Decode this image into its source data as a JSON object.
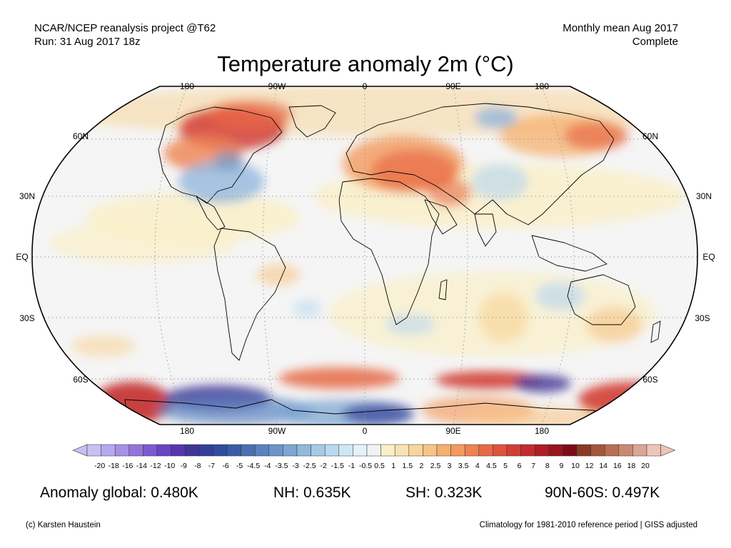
{
  "header": {
    "project": "NCAR/NCEP reanalysis project @T62",
    "run": "Run: 31 Aug 2017 18z",
    "period": "Monthly mean Aug 2017",
    "status": "Complete"
  },
  "title": "Temperature anomaly 2m (°C)",
  "map": {
    "longitude_labels": [
      "180",
      "90W",
      "0",
      "90E",
      "180"
    ],
    "latitude_labels_left": [
      "60N",
      "30N",
      "EQ",
      "30S",
      "60S"
    ],
    "latitude_labels_right": [
      "60N",
      "30N",
      "EQ",
      "30S",
      "60S"
    ]
  },
  "colorbar": {
    "labels": [
      "-20",
      "-18",
      "-16",
      "-14",
      "-12",
      "-10",
      "-9",
      "-8",
      "-7",
      "-6",
      "-5",
      "-4.5",
      "-4",
      "-3.5",
      "-3",
      "-2.5",
      "-2",
      "-1.5",
      "-1",
      "-0.5",
      "0.5",
      "1",
      "1.5",
      "2",
      "2.5",
      "3",
      "3.5",
      "4",
      "4.5",
      "5",
      "6",
      "7",
      "8",
      "9",
      "10",
      "12",
      "14",
      "16",
      "18",
      "20"
    ],
    "colors": [
      "#c9bff2",
      "#b7a8ee",
      "#a690e8",
      "#9274de",
      "#7d5ad2",
      "#6a44c4",
      "#5636b0",
      "#3f3596",
      "#333f99",
      "#2f4c9e",
      "#3a5ca8",
      "#4a6fb3",
      "#5a82bf",
      "#6d94c9",
      "#7ea6d3",
      "#92b8dc",
      "#a6c9e5",
      "#bad9ee",
      "#cfe7f5",
      "#e4f2fa",
      "#f2f2f2",
      "#faefc7",
      "#f9e3b1",
      "#f8d59b",
      "#f7c585",
      "#f5b06f",
      "#f39a5c",
      "#ef8250",
      "#e86a45",
      "#df523c",
      "#d33d35",
      "#c42b2e",
      "#b01c27",
      "#981420",
      "#7d0c18",
      "#8b3a24",
      "#a3563a",
      "#b76f55",
      "#c98a73",
      "#dba694",
      "#edc5b8"
    ]
  },
  "stats": {
    "global": "Anomaly global: 0.480K",
    "nh": "NH: 0.635K",
    "sh": "SH: 0.323K",
    "polar": "90N-60S: 0.497K"
  },
  "footer": {
    "credit": "(c) Karsten Haustein",
    "climatology": "Climatology for 1981-2010 reference period | GISS adjusted"
  }
}
